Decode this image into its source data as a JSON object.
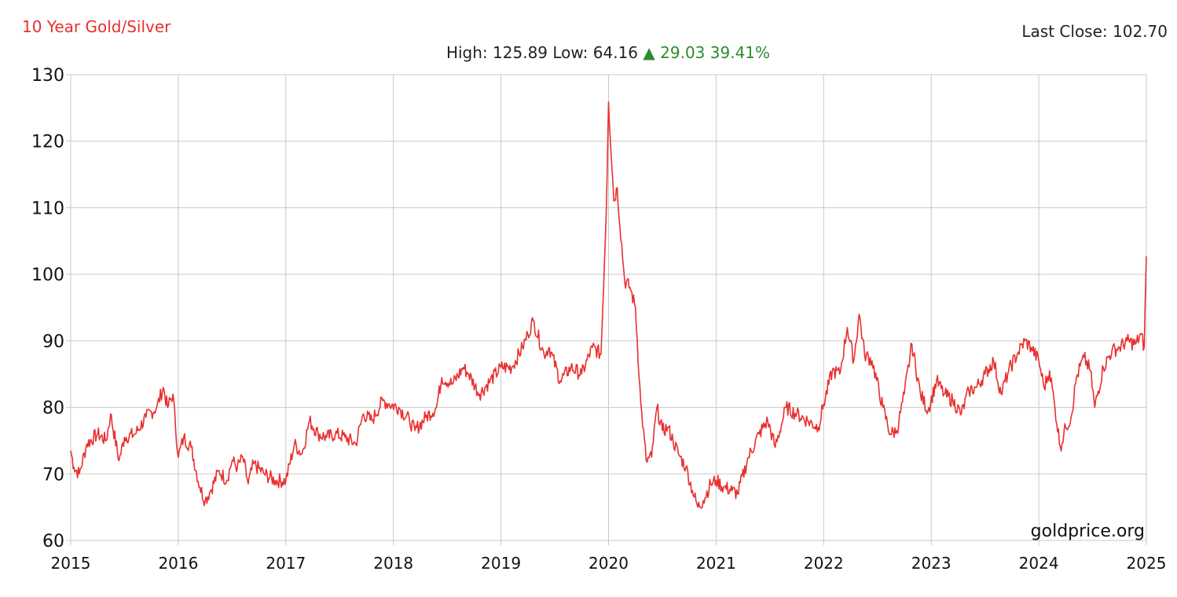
{
  "header": {
    "title": "10 Year Gold/Silver",
    "last_close_label": "Last Close:",
    "last_close_value": "102.70",
    "high_label": "High:",
    "high_value": "125.89",
    "low_label": "Low:",
    "low_value": "64.16",
    "change_arrow": "▲",
    "change_value": "29.03",
    "change_percent": "39.41%"
  },
  "watermark": "goldprice.org",
  "colors": {
    "line": "#e8302f",
    "title": "#e8302f",
    "up": "#2e8b2e",
    "grid": "#c8c8c8",
    "axis": "#888888"
  },
  "chart_data": {
    "type": "line",
    "title": "10 Year Gold/Silver",
    "xlabel": "",
    "ylabel": "",
    "xlim": [
      2015,
      2025
    ],
    "ylim": [
      60,
      130
    ],
    "grid": true,
    "x_ticks": [
      "2015",
      "2016",
      "2017",
      "2018",
      "2019",
      "2020",
      "2021",
      "2022",
      "2023",
      "2024",
      "2025"
    ],
    "y_ticks": [
      "60",
      "70",
      "80",
      "90",
      "100",
      "110",
      "120",
      "130"
    ],
    "series": [
      {
        "x": [
          2015.0,
          2015.03,
          2015.08,
          2015.15,
          2015.25,
          2015.33,
          2015.37,
          2015.45,
          2015.5,
          2015.6,
          2015.7,
          2015.8,
          2015.86,
          2015.9,
          2015.95,
          2016.0,
          2016.05,
          2016.12,
          2016.2,
          2016.25,
          2016.3,
          2016.38,
          2016.45,
          2016.5,
          2016.55,
          2016.6,
          2016.65,
          2016.7,
          2016.8,
          2016.9,
          2017.0,
          2017.08,
          2017.15,
          2017.22,
          2017.3,
          2017.38,
          2017.46,
          2017.55,
          2017.65,
          2017.72,
          2017.8,
          2017.9,
          2017.96,
          2018.05,
          2018.15,
          2018.2,
          2018.3,
          2018.4,
          2018.45,
          2018.55,
          2018.65,
          2018.7,
          2018.8,
          2018.9,
          2019.0,
          2019.1,
          2019.2,
          2019.25,
          2019.3,
          2019.4,
          2019.45,
          2019.55,
          2019.65,
          2019.75,
          2019.85,
          2019.93,
          2019.98,
          2020.0,
          2020.05,
          2020.08,
          2020.15,
          2020.2,
          2020.25,
          2020.3,
          2020.35,
          2020.4,
          2020.45,
          2020.5,
          2020.55,
          2020.6,
          2020.65,
          2020.72,
          2020.78,
          2020.83,
          2020.88,
          2020.95,
          2021.0,
          2021.07,
          2021.15,
          2021.2,
          2021.3,
          2021.4,
          2021.48,
          2021.55,
          2021.65,
          2021.75,
          2021.85,
          2021.95,
          2022.0,
          2022.08,
          2022.15,
          2022.22,
          2022.28,
          2022.33,
          2022.38,
          2022.45,
          2022.55,
          2022.62,
          2022.68,
          2022.75,
          2022.82,
          2022.9,
          2022.97,
          2023.05,
          2023.12,
          2023.2,
          2023.28,
          2023.35,
          2023.42,
          2023.5,
          2023.58,
          2023.65,
          2023.72,
          2023.8,
          2023.87,
          2023.93,
          2024.0,
          2024.05,
          2024.1,
          2024.15,
          2024.2,
          2024.25,
          2024.3,
          2024.35,
          2024.42,
          2024.48,
          2024.52,
          2024.6,
          2024.68,
          2024.75,
          2024.82,
          2024.9,
          2024.95,
          2024.98,
          2025.0
        ],
        "values": [
          73.5,
          71.0,
          70.0,
          74.5,
          76.0,
          75.0,
          79.0,
          72.0,
          75.5,
          76.0,
          78.5,
          80.0,
          83.0,
          80.0,
          82.0,
          72.5,
          75.5,
          74.0,
          68.0,
          66.0,
          67.5,
          70.5,
          69.0,
          72.0,
          71.0,
          72.5,
          68.5,
          71.5,
          70.0,
          69.0,
          69.0,
          74.5,
          73.0,
          78.0,
          76.0,
          75.5,
          76.0,
          75.5,
          74.5,
          79.0,
          78.0,
          81.0,
          80.5,
          80.0,
          78.0,
          76.5,
          78.5,
          80.0,
          84.5,
          83.5,
          86.0,
          85.0,
          82.0,
          84.0,
          86.0,
          86.0,
          89.0,
          91.0,
          93.0,
          88.0,
          89.0,
          84.0,
          86.0,
          85.0,
          89.0,
          88.0,
          110.0,
          125.89,
          111.0,
          113.0,
          99.0,
          98.0,
          95.0,
          80.5,
          72.0,
          72.5,
          80.0,
          76.5,
          77.0,
          75.0,
          73.0,
          71.0,
          67.5,
          65.0,
          66.0,
          68.5,
          69.0,
          68.0,
          67.5,
          67.0,
          72.5,
          76.0,
          78.0,
          74.0,
          80.0,
          79.0,
          78.0,
          77.0,
          80.5,
          85.5,
          85.0,
          92.0,
          87.0,
          94.0,
          88.0,
          87.0,
          80.0,
          76.0,
          76.5,
          82.0,
          89.5,
          82.0,
          79.5,
          84.0,
          82.0,
          81.0,
          79.0,
          82.5,
          83.0,
          85.0,
          87.0,
          82.0,
          85.5,
          88.0,
          90.0,
          89.0,
          87.0,
          83.0,
          85.5,
          80.0,
          74.0,
          77.0,
          78.5,
          84.5,
          87.5,
          85.5,
          80.0,
          86.0,
          88.5,
          89.0,
          90.0,
          89.5,
          91.0,
          89.0,
          102.7
        ]
      }
    ]
  }
}
